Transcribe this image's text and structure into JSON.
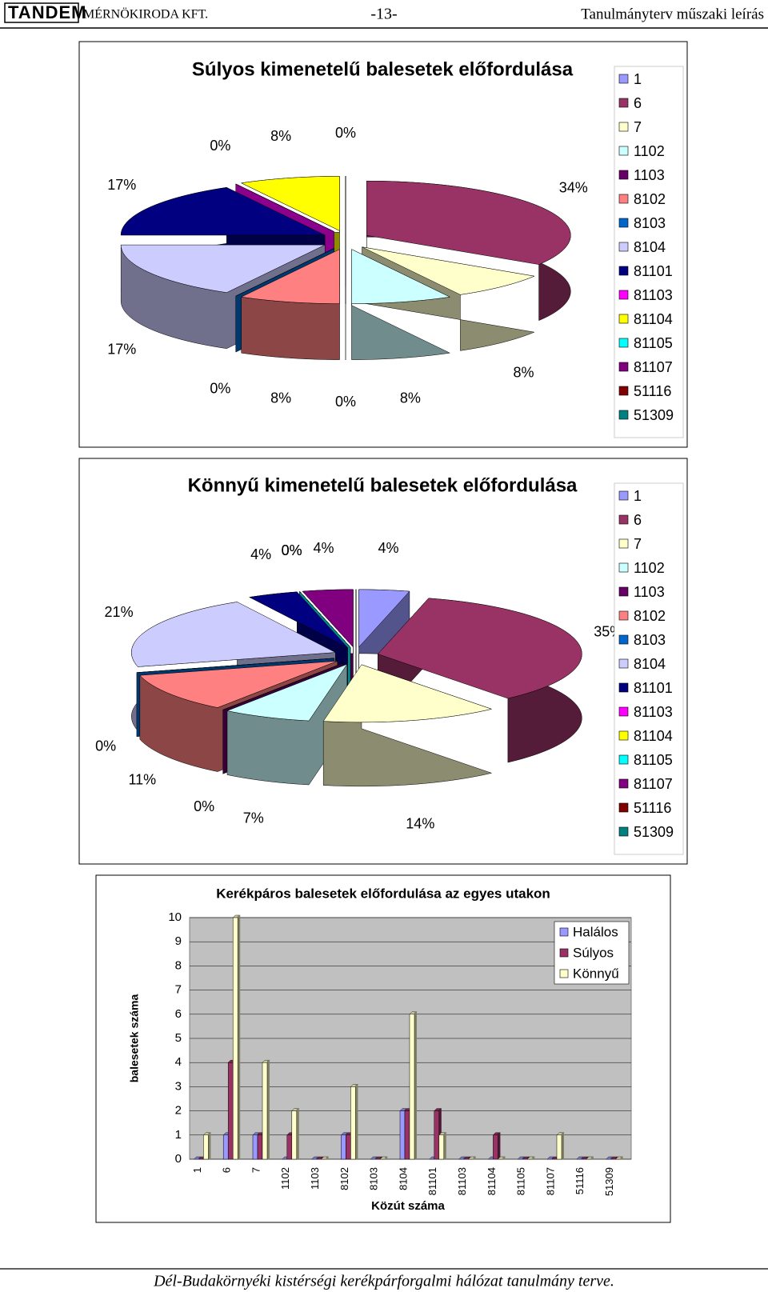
{
  "header": {
    "company": "TANDEM",
    "subtitle": "MÉRNÖKIRODA KFT.",
    "page": "-13-",
    "doc": "Tanulmányterv műszaki leírás"
  },
  "footer": "Dél-Budakörnyéki kistérségi kerékpárforgalmi hálózat tanulmány terve.",
  "chart_data": [
    {
      "type": "pie",
      "title": "Súlyos kimenetelű balesetek előfordulása",
      "categories": [
        "1",
        "6",
        "7",
        "1102",
        "1103",
        "8102",
        "8103",
        "8104",
        "81101",
        "81103",
        "81104",
        "81105",
        "81107",
        "51116",
        "51309"
      ],
      "values": [
        0,
        34,
        8,
        8,
        0,
        8,
        0,
        17,
        17,
        0,
        8,
        0,
        0,
        0,
        0
      ],
      "value_labels": [
        null,
        "34%",
        "8%",
        "8%",
        "0%",
        "8%",
        "0%",
        "17%",
        "17%",
        "0%",
        "8%",
        "0%",
        null,
        null,
        null
      ],
      "colors": [
        "#9999ff",
        "#993366",
        "#ffffcc",
        "#ccffff",
        "#660066",
        "#ff8080",
        "#0066cc",
        "#ccccff",
        "#000080",
        "#ff00ff",
        "#ffff00",
        "#00ffff",
        "#800080",
        "#800000",
        "#008080"
      ],
      "legend": "right"
    },
    {
      "type": "pie",
      "title": "Könnyű kimenetelű balesetek előfordulása",
      "categories": [
        "1",
        "6",
        "7",
        "1102",
        "1103",
        "8102",
        "8103",
        "8104",
        "81101",
        "81103",
        "81104",
        "81105",
        "81107",
        "51116",
        "51309"
      ],
      "values": [
        4,
        35,
        14,
        7,
        0,
        11,
        0,
        21,
        4,
        0,
        0,
        0,
        4,
        0,
        0
      ],
      "value_labels": [
        "4%",
        "35%",
        "14%",
        "7%",
        "0%",
        "11%",
        "0%",
        "21%",
        "4%",
        "0%",
        "0%",
        null,
        "4%",
        null,
        null
      ],
      "colors": [
        "#9999ff",
        "#993366",
        "#ffffcc",
        "#ccffff",
        "#660066",
        "#ff8080",
        "#0066cc",
        "#ccccff",
        "#000080",
        "#ff00ff",
        "#ffff00",
        "#00ffff",
        "#800080",
        "#800000",
        "#008080"
      ],
      "legend": "right"
    },
    {
      "type": "bar",
      "title": "Kerékpáros balesetek előfordulása az egyes utakon",
      "xlabel": "Közút száma",
      "ylabel": "balesetek száma",
      "categories": [
        "1",
        "6",
        "7",
        "1102",
        "1103",
        "8102",
        "8103",
        "8104",
        "81101",
        "81103",
        "81104",
        "81105",
        "81107",
        "51116",
        "51309"
      ],
      "series": [
        {
          "name": "Halálos",
          "color": "#9999ff",
          "values": [
            0,
            1,
            1,
            0,
            0,
            1,
            0,
            2,
            0,
            0,
            0,
            0,
            0,
            0,
            0
          ]
        },
        {
          "name": "Súlyos",
          "color": "#993366",
          "values": [
            0,
            4,
            1,
            1,
            0,
            1,
            0,
            2,
            2,
            0,
            1,
            0,
            0,
            0,
            0
          ]
        },
        {
          "name": "Könnyű",
          "color": "#ffffcc",
          "values": [
            1,
            10,
            4,
            2,
            0,
            3,
            0,
            6,
            1,
            0,
            0,
            0,
            1,
            0,
            0
          ]
        }
      ],
      "ylim": [
        0,
        10
      ],
      "yticks": [
        0,
        1,
        2,
        3,
        4,
        5,
        6,
        7,
        8,
        9,
        10
      ],
      "plot_background": "#c0c0c0",
      "legend": "upper right"
    }
  ]
}
